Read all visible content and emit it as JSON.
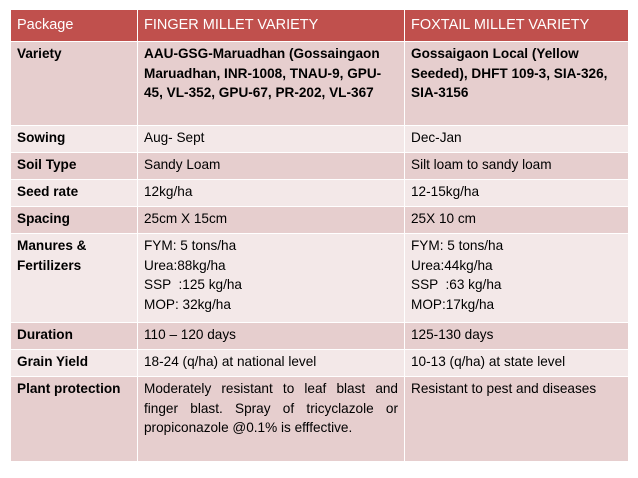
{
  "header": {
    "col1": "Package",
    "col2": "FINGER MILLET VARIETY",
    "col3": "FOXTAIL MILLET VARIETY"
  },
  "rows": [
    {
      "label": "Variety",
      "finger": "AAU-GSG-Maruadhan  (Gossaingaon Maruadhan, INR-1008, TNAU-9, GPU-45, VL-352, GPU-67, PR-202, VL-367",
      "foxtail": "Gossaigaon Local (Yellow Seeded), DHFT 109-3, SIA-326, SIA-3156"
    },
    {
      "label": "Sowing",
      "finger": "Aug- Sept",
      "foxtail": "Dec-Jan"
    },
    {
      "label": "Soil Type",
      "finger": "Sandy Loam",
      "foxtail": "Silt loam to sandy loam"
    },
    {
      "label": "Seed rate",
      "finger": "12kg/ha",
      "foxtail": "12-15kg/ha"
    },
    {
      "label": "Spacing",
      "finger": "25cm X 15cm",
      "foxtail": "25X 10 cm"
    },
    {
      "label": "Manures & Fertilizers",
      "finger_lines": [
        "FYM: 5 tons/ha",
        "Urea:88kg/ha",
        "SSP  :125 kg/ha",
        "MOP: 32kg/ha"
      ],
      "foxtail_lines": [
        "FYM: 5 tons/ha",
        "Urea:44kg/ha",
        "SSP  :63 kg/ha",
        "MOP:17kg/ha"
      ]
    },
    {
      "label": "Duration",
      "finger": "110 – 120 days",
      "foxtail": "125-130 days"
    },
    {
      "label": "Grain Yield",
      "finger": "18-24 (q/ha) at national level",
      "foxtail": "10-13 (q/ha) at state level"
    },
    {
      "label": "Plant protection",
      "finger": "Moderately resistant to  leaf blast and finger blast. Spray of tricyclazole or propiconazole @0.1%  is efffective.",
      "foxtail": "Resistant to pest and diseases"
    }
  ]
}
